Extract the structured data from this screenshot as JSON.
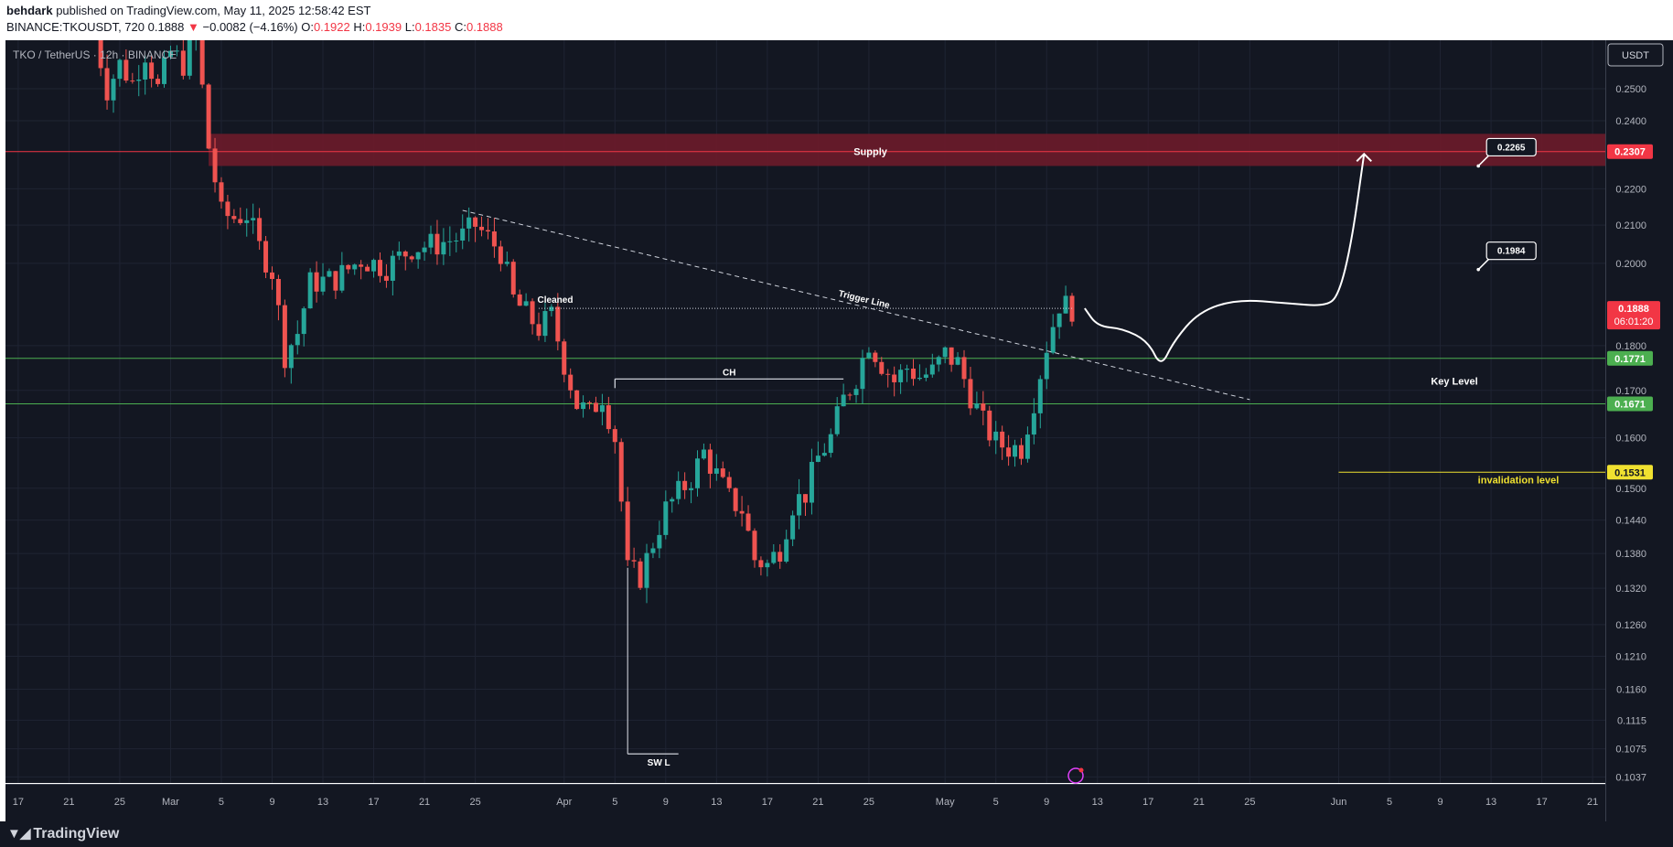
{
  "header": {
    "author": "behdark",
    "published": "published on TradingView.com, May 11, 2025 12:58:42 EST",
    "symbol": "BINANCE:TKOUSDT, 720",
    "last": "0.1888",
    "change_arrow": "▼",
    "change": "−0.0082 (−4.16%)",
    "o_label": "O:",
    "o": "0.1922",
    "h_label": "H:",
    "h": "0.1939",
    "l_label": "L:",
    "l": "0.1835",
    "c_label": "C:",
    "c": "0.1888"
  },
  "footer": {
    "brand": "TradingView"
  },
  "colors": {
    "background": "#131722",
    "up": "#26a69a",
    "down": "#ef5350",
    "supply_zone": "#6d1b2a",
    "key_level": "#4caf50",
    "invalidation": "#f0e130",
    "price_tag": "#f23645"
  },
  "chart_data": {
    "type": "candlestick",
    "title": "TKO / TetherUS · 12h · BINANCE",
    "currency": "USDT",
    "scale": "log",
    "ylim": [
      0.1029,
      0.266
    ],
    "y_ticks": [
      0.25,
      0.24,
      0.22,
      0.21,
      0.2,
      0.18,
      0.17,
      0.16,
      0.15,
      0.144,
      0.138,
      0.132,
      0.126,
      0.121,
      0.116,
      0.1115,
      0.1075,
      0.1037
    ],
    "y_tick_labels": [
      "0.2500",
      "0.2400",
      "0.2200",
      "0.2100",
      "0.2000",
      "0.1800",
      "0.1700",
      "0.1600",
      "0.1500",
      "0.1440",
      "0.1380",
      "0.1320",
      "0.1260",
      "0.1210",
      "0.1160",
      "0.1115",
      "0.1075",
      "0.1037"
    ],
    "x_range": [
      "2025-02-16",
      "2025-06-22"
    ],
    "x_ticks": [
      {
        "date": "2025-02-17",
        "label": "17"
      },
      {
        "date": "2025-02-21",
        "label": "21"
      },
      {
        "date": "2025-02-25",
        "label": "25"
      },
      {
        "date": "2025-03-01",
        "label": "Mar"
      },
      {
        "date": "2025-03-05",
        "label": "5"
      },
      {
        "date": "2025-03-09",
        "label": "9"
      },
      {
        "date": "2025-03-13",
        "label": "13"
      },
      {
        "date": "2025-03-17",
        "label": "17"
      },
      {
        "date": "2025-03-21",
        "label": "21"
      },
      {
        "date": "2025-03-25",
        "label": "25"
      },
      {
        "date": "2025-04-01",
        "label": "Apr"
      },
      {
        "date": "2025-04-05",
        "label": "5"
      },
      {
        "date": "2025-04-09",
        "label": "9"
      },
      {
        "date": "2025-04-13",
        "label": "13"
      },
      {
        "date": "2025-04-17",
        "label": "17"
      },
      {
        "date": "2025-04-21",
        "label": "21"
      },
      {
        "date": "2025-04-25",
        "label": "25"
      },
      {
        "date": "2025-05-01",
        "label": "May"
      },
      {
        "date": "2025-05-05",
        "label": "5"
      },
      {
        "date": "2025-05-09",
        "label": "9"
      },
      {
        "date": "2025-05-13",
        "label": "13"
      },
      {
        "date": "2025-05-17",
        "label": "17"
      },
      {
        "date": "2025-05-21",
        "label": "21"
      },
      {
        "date": "2025-05-25",
        "label": "25"
      },
      {
        "date": "2025-06-01",
        "label": "Jun"
      },
      {
        "date": "2025-06-05",
        "label": "5"
      },
      {
        "date": "2025-06-09",
        "label": "9"
      },
      {
        "date": "2025-06-13",
        "label": "13"
      },
      {
        "date": "2025-06-17",
        "label": "17"
      },
      {
        "date": "2025-06-21",
        "label": "21"
      }
    ],
    "close_path": [
      [
        "2025-02-23",
        0.268
      ],
      [
        "2025-02-24",
        0.25
      ],
      [
        "2025-02-25",
        0.258
      ],
      [
        "2025-02-26",
        0.252
      ],
      [
        "2025-02-27",
        0.262
      ],
      [
        "2025-02-28",
        0.25
      ],
      [
        "2025-03-01",
        0.262
      ],
      [
        "2025-03-02",
        0.258
      ],
      [
        "2025-03-03",
        0.268
      ],
      [
        "2025-03-04",
        0.232
      ],
      [
        "2025-03-05",
        0.213
      ],
      [
        "2025-03-06",
        0.212
      ],
      [
        "2025-03-07",
        0.213
      ],
      [
        "2025-03-08",
        0.204
      ],
      [
        "2025-03-09",
        0.198
      ],
      [
        "2025-03-10",
        0.178
      ],
      [
        "2025-03-11",
        0.183
      ],
      [
        "2025-03-12",
        0.195
      ],
      [
        "2025-03-14",
        0.196
      ],
      [
        "2025-03-16",
        0.201
      ],
      [
        "2025-03-18",
        0.199
      ],
      [
        "2025-03-20",
        0.204
      ],
      [
        "2025-03-22",
        0.205
      ],
      [
        "2025-03-24",
        0.207
      ],
      [
        "2025-03-25",
        0.21
      ],
      [
        "2025-03-27",
        0.203
      ],
      [
        "2025-03-28",
        0.191
      ],
      [
        "2025-03-30",
        0.184
      ],
      [
        "2025-03-31",
        0.187
      ],
      [
        "2025-04-01",
        0.176
      ],
      [
        "2025-04-02",
        0.167
      ],
      [
        "2025-04-03",
        0.165
      ],
      [
        "2025-04-04",
        0.169
      ],
      [
        "2025-04-05",
        0.16
      ],
      [
        "2025-04-06",
        0.135
      ],
      [
        "2025-04-07",
        0.134
      ],
      [
        "2025-04-08",
        0.14
      ],
      [
        "2025-04-09",
        0.146
      ],
      [
        "2025-04-10",
        0.149
      ],
      [
        "2025-04-11",
        0.152
      ],
      [
        "2025-04-12",
        0.157
      ],
      [
        "2025-04-14",
        0.148
      ],
      [
        "2025-04-15",
        0.146
      ],
      [
        "2025-04-16",
        0.137
      ],
      [
        "2025-04-17",
        0.136
      ],
      [
        "2025-04-18",
        0.139
      ],
      [
        "2025-04-19",
        0.147
      ],
      [
        "2025-04-20",
        0.149
      ],
      [
        "2025-04-21",
        0.156
      ],
      [
        "2025-04-22",
        0.16
      ],
      [
        "2025-04-23",
        0.168
      ],
      [
        "2025-04-24",
        0.173
      ],
      [
        "2025-04-25",
        0.181
      ],
      [
        "2025-04-26",
        0.176
      ],
      [
        "2025-04-27",
        0.172
      ],
      [
        "2025-04-28",
        0.175
      ],
      [
        "2025-04-29",
        0.173
      ],
      [
        "2025-04-30",
        0.174
      ],
      [
        "2025-05-01",
        0.178
      ],
      [
        "2025-05-02",
        0.176
      ],
      [
        "2025-05-03",
        0.169
      ],
      [
        "2025-05-04",
        0.163
      ],
      [
        "2025-05-05",
        0.159
      ],
      [
        "2025-05-06",
        0.158
      ],
      [
        "2025-05-07",
        0.158
      ],
      [
        "2025-05-08",
        0.168
      ],
      [
        "2025-05-09",
        0.18
      ],
      [
        "2025-05-10",
        0.19
      ],
      [
        "2025-05-11",
        0.1888
      ]
    ],
    "supply_zone": {
      "label": "Supply",
      "from": 0.2265,
      "to": 0.236,
      "start": "2025-03-04",
      "end": "2025-06-22"
    },
    "horizontal_levels": [
      {
        "label": "Supply",
        "value": 0.2307,
        "tag": "0.2307",
        "color": "#f23645"
      },
      {
        "label": "Key Level",
        "value": 0.1771,
        "tag": "0.1771",
        "color": "#4caf50"
      },
      {
        "label": "",
        "value": 0.1671,
        "tag": "0.1671",
        "color": "#4caf50"
      },
      {
        "label": "invalidation level",
        "value": 0.1531,
        "tag": "0.1531",
        "color": "#f0e130"
      }
    ],
    "last_price": {
      "value": 0.1888,
      "tag": "0.1888",
      "countdown": "06:01:20"
    },
    "annotations": [
      {
        "text": "Cleaned",
        "type": "level",
        "price": 0.1888,
        "start": "2025-03-30",
        "end": "2025-05-11"
      },
      {
        "text": "CH",
        "type": "level",
        "price": 0.1725,
        "start": "2025-04-05",
        "end": "2025-04-23"
      },
      {
        "text": "SW L",
        "type": "level",
        "price": 0.1068,
        "start": "2025-04-06",
        "end": "2025-04-10"
      },
      {
        "text": "Trigger Line",
        "type": "trendline",
        "from": [
          "2025-03-24",
          0.214
        ],
        "to": [
          "2025-05-25",
          0.168
        ]
      }
    ],
    "callouts": [
      {
        "text": "0.2265",
        "date": "2025-06-12",
        "price": 0.2265
      },
      {
        "text": "0.1984",
        "date": "2025-06-12",
        "price": 0.1984
      }
    ],
    "projection": [
      [
        "2025-05-12",
        0.1888
      ],
      [
        "2025-05-13",
        0.1845
      ],
      [
        "2025-05-15",
        0.184
      ],
      [
        "2025-05-17",
        0.181
      ],
      [
        "2025-05-18",
        0.175
      ],
      [
        "2025-05-19",
        0.181
      ],
      [
        "2025-05-21",
        0.188
      ],
      [
        "2025-05-24",
        0.191
      ],
      [
        "2025-05-28",
        0.19
      ],
      [
        "2025-05-31",
        0.1893
      ],
      [
        "2025-06-01",
        0.192
      ],
      [
        "2025-06-02",
        0.205
      ],
      [
        "2025-06-03",
        0.23
      ]
    ]
  }
}
